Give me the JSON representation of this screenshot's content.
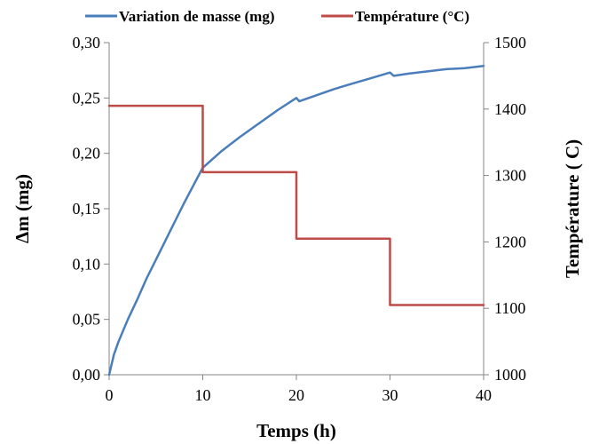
{
  "chart_data": {
    "type": "line",
    "xlabel": "Temps (h)",
    "ylabel": "Δm (mg)",
    "y2label": "Température ( C)",
    "xlim": [
      0,
      40
    ],
    "ylim": [
      0,
      0.3
    ],
    "y2lim": [
      1000,
      1500
    ],
    "x_ticks": [
      "0",
      "10",
      "20",
      "30",
      "40"
    ],
    "y_ticks": [
      "0,00",
      "0,05",
      "0,10",
      "0,15",
      "0,20",
      "0,25",
      "0,30"
    ],
    "y2_ticks": [
      "1000",
      "1100",
      "1200",
      "1300",
      "1400",
      "1500"
    ],
    "grid": false,
    "legend_position": "top",
    "series": [
      {
        "name": "Variation de masse (mg)",
        "axis": "left",
        "color": "#4a7ebb",
        "x": [
          0,
          0.5,
          1,
          2,
          3,
          4,
          5,
          6,
          7,
          8,
          9,
          10,
          12,
          14,
          16,
          18,
          20,
          20.3,
          22,
          24,
          26,
          28,
          30,
          30.4,
          32,
          34,
          36,
          38,
          40
        ],
        "y": [
          0.0,
          0.018,
          0.03,
          0.05,
          0.068,
          0.087,
          0.104,
          0.121,
          0.138,
          0.155,
          0.171,
          0.187,
          0.202,
          0.215,
          0.227,
          0.239,
          0.25,
          0.247,
          0.252,
          0.258,
          0.263,
          0.268,
          0.273,
          0.27,
          0.272,
          0.274,
          0.276,
          0.277,
          0.279
        ]
      },
      {
        "name": "Température (°C)",
        "axis": "right",
        "color": "#be4b48",
        "x": [
          0,
          10,
          10,
          10.2,
          20,
          20,
          20.3,
          30,
          30,
          30.3,
          40
        ],
        "y": [
          1405,
          1405,
          1305,
          1305,
          1305,
          1205,
          1205,
          1205,
          1105,
          1105,
          1105
        ]
      }
    ]
  }
}
